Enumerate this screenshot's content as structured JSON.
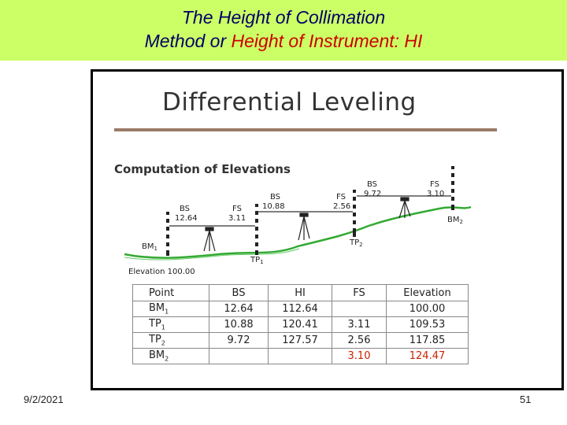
{
  "slide_title": {
    "line1": "The Height of Collimation",
    "line2_prefix": "Method or ",
    "line2_highlight": "Height of Instrument: HI"
  },
  "figure": {
    "heading": "Differential Leveling",
    "subheading": "Computation of Elevations",
    "labels": {
      "bm1": "BM",
      "bm1_sub": "1",
      "elevation": "Elevation 100.00",
      "bs1_label": "BS",
      "bs1_value": "12.64",
      "fs1_label": "FS",
      "fs1_value": "3.11",
      "tp1": "TP",
      "tp1_sub": "1",
      "bs2_label": "BS",
      "bs2_value": "10.88",
      "fs2_label": "FS",
      "fs2_value": "2.56",
      "tp2": "TP",
      "tp2_sub": "2",
      "bs3_label": "BS",
      "bs3_value": "9.72",
      "fs3_label": "FS",
      "fs3_value": "3.10",
      "bm2": "BM",
      "bm2_sub": "2"
    }
  },
  "table": {
    "headers": [
      "Point",
      "BS",
      "HI",
      "FS",
      "Elevation"
    ],
    "rows": [
      {
        "point": "BM",
        "sub": "1",
        "bs": "12.64",
        "hi": "112.64",
        "fs": "",
        "elev": "100.00"
      },
      {
        "point": "TP",
        "sub": "1",
        "bs": "10.88",
        "hi": "120.41",
        "fs": "3.11",
        "elev": "109.53"
      },
      {
        "point": "TP",
        "sub": "2",
        "bs": "9.72",
        "hi": "127.57",
        "fs": "2.56",
        "elev": "117.85"
      },
      {
        "point": "BM",
        "sub": "2",
        "bs": "",
        "hi": "",
        "fs": "3.10",
        "elev": "124.47"
      }
    ]
  },
  "footer": {
    "date": "9/2/2021",
    "page": "51"
  }
}
